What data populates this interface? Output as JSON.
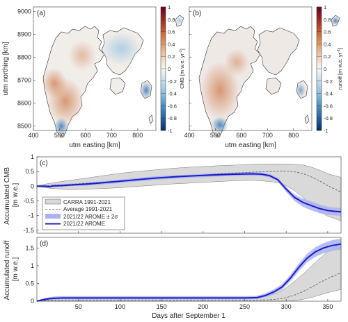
{
  "colors": {
    "cmb_neg": "#2166ac",
    "cmb_pos": "#b2502a",
    "carra_band": "#d9d9d9",
    "avg_line": "#555555",
    "arome_band": "#aab2f0",
    "arome_line": "#1a1acc",
    "map_outline": "#333333"
  },
  "chart_data": [
    {
      "type": "heatmap",
      "panel_label": "(a)",
      "xlabel": "utm easting [km]",
      "ylabel": "utm northing [km]",
      "xlim": [
        400,
        870
      ],
      "ylim": [
        8480,
        9020
      ],
      "xticks": [
        400,
        500,
        600,
        700,
        800
      ],
      "yticks": [
        8500,
        8600,
        8700,
        8800,
        8900,
        9000
      ],
      "colorbar": {
        "label": "CMB [m w.e. yr",
        "label_sup": "-1",
        "label_end": "]",
        "ticks": [
          "1",
          "0.8",
          "0.6",
          "0.4",
          "0.2",
          "0",
          "-0.2",
          "-0.4",
          "-0.6",
          "-0.8",
          "-1"
        ],
        "range": [
          -1,
          1
        ]
      }
    },
    {
      "type": "heatmap",
      "panel_label": "(b)",
      "xlabel": "utm easting [km]",
      "xlim": [
        400,
        870
      ],
      "ylim": [
        8480,
        9020
      ],
      "xticks": [
        400,
        500,
        600,
        700,
        800
      ],
      "yticks": [
        8500,
        8600,
        8700,
        8800,
        8900,
        9000
      ],
      "colorbar": {
        "label": "runoff [m w.e. yr",
        "label_sup": "-1",
        "label_end": "]",
        "ticks": [
          "1",
          "0.8",
          "0.6",
          "0.4",
          "0.2",
          "0",
          "-0.2",
          "-0.4",
          "-0.6",
          "-0.8",
          "-1"
        ],
        "range": [
          -1,
          1
        ]
      }
    },
    {
      "type": "line",
      "panel_label": "(c)",
      "ylabel_line1": "Accumulated CMB",
      "ylabel_line2": "[m w.e.]",
      "xlim": [
        0,
        366
      ],
      "ylim": [
        -1.6,
        1.0
      ],
      "yticks": [
        "1",
        "0.5",
        "0",
        "-0.5",
        "-1",
        "-1.5"
      ],
      "ytick_values": [
        1,
        0.5,
        0,
        -0.5,
        -1,
        -1.5
      ],
      "legend": {
        "placement": "lower-left",
        "entries": [
          "CARRA 1991-2021",
          "Average 1991-2021",
          "2021/22 AROME ± 2σ",
          "2021/22 AROME"
        ]
      },
      "series": [
        {
          "name": "CARRA 1991-2021",
          "kind": "band",
          "x": [
            0,
            20,
            40,
            60,
            80,
            100,
            120,
            140,
            160,
            180,
            200,
            220,
            240,
            260,
            280,
            290,
            300,
            310,
            320,
            330,
            340,
            350,
            366
          ],
          "upper": [
            0.02,
            0.12,
            0.2,
            0.28,
            0.36,
            0.44,
            0.5,
            0.55,
            0.6,
            0.64,
            0.67,
            0.7,
            0.72,
            0.75,
            0.76,
            0.76,
            0.76,
            0.75,
            0.72,
            0.65,
            0.55,
            0.42,
            0.3
          ],
          "lower": [
            -0.02,
            -0.08,
            -0.12,
            -0.1,
            -0.08,
            -0.05,
            -0.01,
            0.03,
            0.07,
            0.1,
            0.13,
            0.16,
            0.19,
            0.2,
            0.16,
            0.12,
            0.02,
            -0.15,
            -0.38,
            -0.62,
            -0.85,
            -1.02,
            -1.18
          ]
        },
        {
          "name": "Average 1991-2021",
          "kind": "line",
          "x": [
            0,
            20,
            40,
            60,
            80,
            100,
            120,
            140,
            160,
            180,
            200,
            220,
            240,
            260,
            280,
            290,
            300,
            310,
            320,
            330,
            340,
            350,
            366
          ],
          "y": [
            0,
            0.03,
            0.06,
            0.1,
            0.14,
            0.18,
            0.22,
            0.26,
            0.3,
            0.34,
            0.38,
            0.42,
            0.45,
            0.48,
            0.5,
            0.51,
            0.51,
            0.49,
            0.43,
            0.32,
            0.18,
            0.02,
            -0.2
          ]
        },
        {
          "name": "2021/22 AROME ± 2σ",
          "kind": "band",
          "x": [
            0,
            10,
            20,
            30,
            40,
            60,
            80,
            100,
            120,
            140,
            160,
            180,
            200,
            220,
            240,
            260,
            270,
            280,
            290,
            300,
            310,
            320,
            330,
            340,
            350,
            360,
            366
          ],
          "upper": [
            0.03,
            0.03,
            0.06,
            0.06,
            0.09,
            0.12,
            0.17,
            0.22,
            0.28,
            0.33,
            0.37,
            0.39,
            0.42,
            0.45,
            0.47,
            0.48,
            0.47,
            0.42,
            0.28,
            -0.02,
            -0.28,
            -0.42,
            -0.52,
            -0.62,
            -0.7,
            -0.73,
            -0.73
          ],
          "lower": [
            -0.03,
            -0.04,
            -0.03,
            -0.02,
            0.0,
            0.02,
            0.06,
            0.11,
            0.16,
            0.21,
            0.25,
            0.28,
            0.31,
            0.33,
            0.35,
            0.36,
            0.35,
            0.3,
            0.15,
            -0.2,
            -0.5,
            -0.7,
            -0.82,
            -0.92,
            -0.98,
            -1.0,
            -1.0
          ]
        },
        {
          "name": "2021/22 AROME",
          "kind": "line",
          "x": [
            0,
            10,
            15,
            20,
            30,
            40,
            60,
            80,
            100,
            120,
            140,
            160,
            180,
            200,
            220,
            240,
            260,
            270,
            280,
            290,
            300,
            310,
            320,
            330,
            340,
            350,
            360,
            366
          ],
          "y": [
            0,
            0,
            -0.02,
            0.01,
            0.02,
            0.04,
            0.07,
            0.12,
            0.17,
            0.22,
            0.27,
            0.31,
            0.34,
            0.37,
            0.39,
            0.41,
            0.42,
            0.41,
            0.36,
            0.22,
            -0.1,
            -0.38,
            -0.55,
            -0.66,
            -0.76,
            -0.83,
            -0.86,
            -0.87
          ]
        }
      ]
    },
    {
      "type": "line",
      "panel_label": "(d)",
      "xlabel": "Days after September 1",
      "ylabel_line1": "Accumulated runoff",
      "ylabel_line2": "[m w.e.]",
      "xlim": [
        0,
        366
      ],
      "ylim": [
        0,
        1.8
      ],
      "xticks": [
        50,
        100,
        150,
        200,
        250,
        300,
        350
      ],
      "yticks": [
        "1.5",
        "1",
        "0.5",
        "0"
      ],
      "ytick_values": [
        1.5,
        1,
        0.5,
        0
      ],
      "series": [
        {
          "name": "CARRA 1991-2021",
          "kind": "band",
          "x": [
            0,
            5,
            10,
            15,
            20,
            40,
            100,
            200,
            260,
            270,
            280,
            290,
            300,
            310,
            320,
            330,
            340,
            350,
            366
          ],
          "upper": [
            0.02,
            0.04,
            0.06,
            0.08,
            0.1,
            0.11,
            0.11,
            0.11,
            0.11,
            0.12,
            0.16,
            0.24,
            0.38,
            0.56,
            0.76,
            0.98,
            1.2,
            1.4,
            1.65
          ],
          "lower": [
            0.0,
            0.0,
            0.0,
            0.0,
            0.0,
            0.0,
            0.0,
            0.0,
            0.0,
            0.0,
            0.0,
            0.0,
            0.0,
            0.02,
            0.05,
            0.1,
            0.17,
            0.24,
            0.33
          ]
        },
        {
          "name": "Average 1991-2021",
          "kind": "line",
          "x": [
            0,
            10,
            20,
            40,
            100,
            200,
            260,
            280,
            290,
            300,
            310,
            320,
            330,
            340,
            350,
            366
          ],
          "y": [
            0.0,
            0.02,
            0.03,
            0.03,
            0.03,
            0.03,
            0.03,
            0.04,
            0.06,
            0.1,
            0.17,
            0.27,
            0.39,
            0.52,
            0.64,
            0.8
          ]
        },
        {
          "name": "2021/22 AROME ± 2σ",
          "kind": "band",
          "x": [
            0,
            5,
            10,
            15,
            20,
            30,
            60,
            100,
            150,
            200,
            250,
            265,
            275,
            285,
            295,
            305,
            315,
            325,
            335,
            345,
            355,
            366
          ],
          "upper": [
            0.02,
            0.05,
            0.09,
            0.11,
            0.13,
            0.14,
            0.14,
            0.14,
            0.14,
            0.14,
            0.14,
            0.15,
            0.22,
            0.33,
            0.48,
            0.74,
            1.05,
            1.33,
            1.52,
            1.64,
            1.72,
            1.76
          ],
          "lower": [
            0.0,
            0.01,
            0.02,
            0.03,
            0.04,
            0.05,
            0.05,
            0.05,
            0.05,
            0.05,
            0.05,
            0.06,
            0.11,
            0.2,
            0.33,
            0.56,
            0.84,
            1.09,
            1.25,
            1.35,
            1.42,
            1.45
          ]
        },
        {
          "name": "2021/22 AROME",
          "kind": "line",
          "x": [
            0,
            5,
            10,
            15,
            20,
            30,
            60,
            100,
            150,
            200,
            250,
            265,
            275,
            285,
            295,
            305,
            315,
            325,
            335,
            345,
            355,
            366
          ],
          "y": [
            0.0,
            0.03,
            0.05,
            0.07,
            0.08,
            0.09,
            0.09,
            0.09,
            0.09,
            0.09,
            0.09,
            0.1,
            0.16,
            0.26,
            0.4,
            0.65,
            0.95,
            1.21,
            1.39,
            1.5,
            1.57,
            1.61
          ]
        }
      ]
    }
  ]
}
